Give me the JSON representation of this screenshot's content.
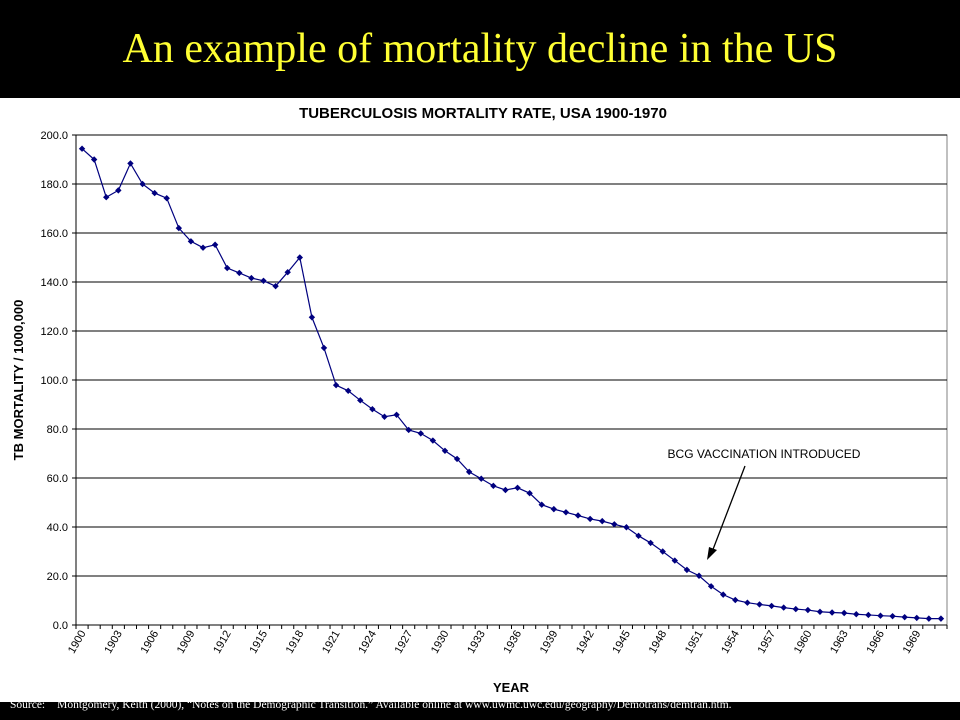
{
  "slide": {
    "title": "An example of mortality decline in the US",
    "source_label": "Source:",
    "source_text": "Montgomery, Keith (2000), “Notes on the Demographic Transition.”  Available online at www.uwmc.uwc.edu/geography/Demotrans/demtran.htm."
  },
  "colors": {
    "title": "#ffff33",
    "background": "#000000",
    "series": "#00007f",
    "grid": "#000000"
  },
  "chart_data": {
    "type": "line",
    "title": "TUBERCULOSIS MORTALITY RATE, USA 1900-1970",
    "xlabel": "YEAR",
    "ylabel": "TB MORTALITY / 1000,000",
    "ylim": [
      0,
      200
    ],
    "yticks": [
      "0.0",
      "20.0",
      "40.0",
      "60.0",
      "80.0",
      "100.0",
      "120.0",
      "140.0",
      "160.0",
      "180.0",
      "200.0"
    ],
    "xtick_labels": [
      "1900",
      "1903",
      "1906",
      "1909",
      "1912",
      "1915",
      "1918",
      "1921",
      "1924",
      "1927",
      "1930",
      "1933",
      "1936",
      "1939",
      "1942",
      "1945",
      "1948",
      "1951",
      "1954",
      "1957",
      "1960",
      "1963",
      "1966",
      "1969"
    ],
    "grid": true,
    "legend": "none",
    "marker": "diamond",
    "x_start": 1900,
    "series": [
      {
        "values": [
          194.4,
          190.0,
          174.6,
          177.4,
          188.4,
          180.0,
          176.3,
          174.2,
          162.0,
          156.6,
          154.0,
          155.2,
          145.7,
          143.7,
          141.6,
          140.5,
          138.3,
          144.0,
          150.0,
          125.6,
          113.1,
          97.9,
          95.6,
          91.7,
          88.1,
          85.0,
          85.8,
          79.6,
          78.2,
          75.3,
          71.1,
          67.8,
          62.5,
          59.7,
          56.8,
          55.1,
          56.0,
          53.8,
          49.1,
          47.3,
          46.0,
          44.7,
          43.3,
          42.4,
          41.1,
          39.9,
          36.4,
          33.5,
          30.0,
          26.3,
          22.5,
          20.1,
          15.8,
          12.4,
          10.2,
          9.1,
          8.4,
          7.8,
          7.1,
          6.5,
          6.1,
          5.4,
          5.1,
          4.9,
          4.4,
          4.1,
          3.8,
          3.6,
          3.2,
          2.9,
          2.6,
          2.6
        ]
      }
    ],
    "annotations": [
      {
        "text": "BCG VACCINATION INTRODUCED",
        "x": 1951,
        "y": 22.5
      }
    ]
  }
}
